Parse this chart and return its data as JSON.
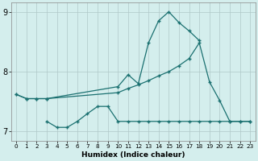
{
  "xlabel": "Humidex (Indice chaleur)",
  "bg_color": "#d4eeed",
  "grid_color_major": "#b0c8c8",
  "grid_color_minor": "#c8dede",
  "line_color": "#1a7070",
  "line1_x": [
    0,
    1,
    2,
    3,
    10,
    11,
    12,
    13,
    14,
    15,
    16,
    17,
    18
  ],
  "line1_y": [
    7.62,
    7.55,
    7.55,
    7.55,
    7.75,
    7.95,
    7.8,
    8.48,
    8.85,
    9.0,
    8.82,
    8.68,
    8.52
  ],
  "line2_x": [
    0,
    1,
    2,
    3,
    10,
    11,
    12,
    13,
    14,
    15,
    16,
    17,
    18,
    19,
    20,
    21,
    22,
    23
  ],
  "line2_y": [
    7.62,
    7.55,
    7.55,
    7.55,
    7.65,
    7.72,
    7.78,
    7.85,
    7.93,
    8.0,
    8.1,
    8.22,
    8.48,
    7.83,
    7.52,
    7.17,
    7.17,
    7.17
  ],
  "line3_x": [
    3,
    4,
    5,
    6,
    7,
    8,
    9,
    10,
    11,
    12,
    13,
    14,
    15,
    16,
    17,
    18,
    19,
    20,
    21,
    22,
    23
  ],
  "line3_y": [
    7.17,
    7.07,
    7.07,
    7.17,
    7.3,
    7.42,
    7.42,
    7.17,
    7.17,
    7.17,
    7.17,
    7.17,
    7.17,
    7.17,
    7.17,
    7.17,
    7.17,
    7.17,
    7.17,
    7.17,
    7.17
  ],
  "xlim": [
    -0.5,
    23.5
  ],
  "ylim": [
    6.85,
    9.15
  ],
  "yticks": [
    7,
    8,
    9
  ],
  "xticks": [
    0,
    1,
    2,
    3,
    4,
    5,
    6,
    7,
    8,
    9,
    10,
    11,
    12,
    13,
    14,
    15,
    16,
    17,
    18,
    19,
    20,
    21,
    22,
    23
  ]
}
